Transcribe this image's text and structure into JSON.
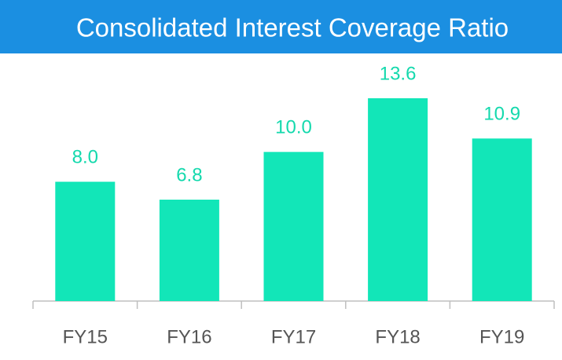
{
  "chart_data": {
    "type": "bar",
    "title": "Consolidated Interest Coverage Ratio",
    "categories": [
      "FY15",
      "FY16",
      "FY17",
      "FY18",
      "FY19"
    ],
    "values": [
      8,
      6.8,
      10,
      13.6,
      10.9
    ],
    "value_labels": [
      "8.0",
      "6.8",
      "10.0",
      "13.6",
      "10.9"
    ],
    "color": "#12e6b8"
  }
}
